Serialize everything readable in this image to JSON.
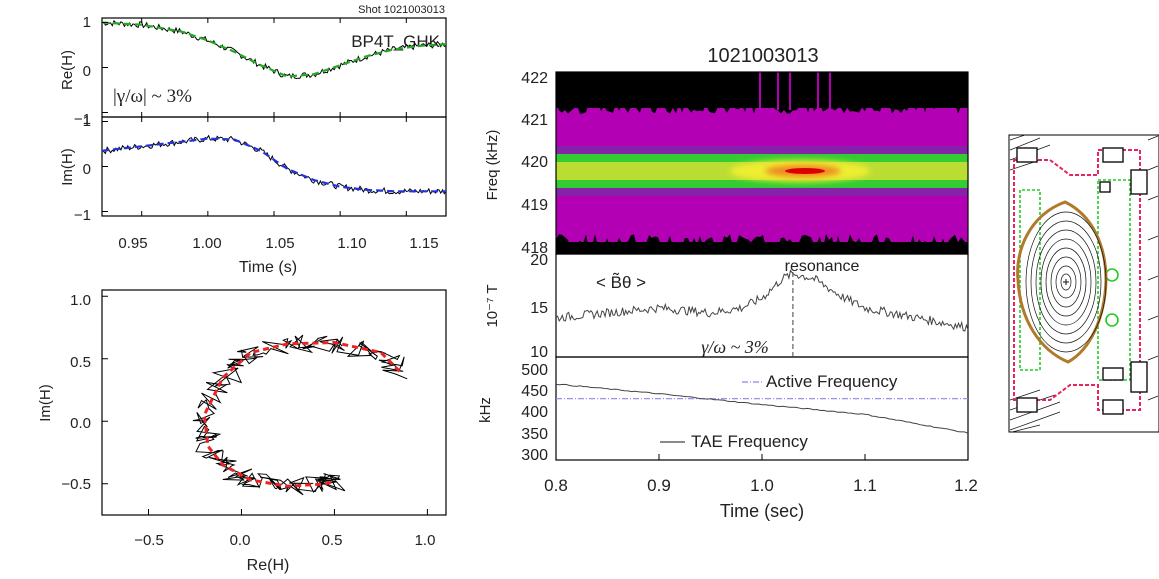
{
  "colors": {
    "fit_re": "#22aa22",
    "fit_im": "#2233dd",
    "fit_nyquist": "#ee2222",
    "data": "#000000",
    "active_line": "#8888ee",
    "spec_bg": "#000000",
    "spec_magenta": "#b400b4",
    "spec_green": "#33cc33",
    "spec_yellow": "#eeee33",
    "spec_core": "#dd0000",
    "vessel_red": "#e8245a",
    "vessel_green": "#22cc22",
    "vessel_brown": "#b07a2a"
  },
  "left_panel": {
    "shot_label": "Shot 1021003013",
    "probe_label": "BP4T_GHK",
    "growth_label": "|γ/ω| ~ 3%",
    "re_ylabel": "Re(H)",
    "im_ylabel": "Im(H)",
    "time_xlabel": "Time (s)",
    "re_yticks": [
      "1",
      "0",
      "−1"
    ],
    "im_yticks": [
      "1",
      "0",
      "−1"
    ],
    "time_xticks": [
      "0.95",
      "1.00",
      "1.05",
      "1.10",
      "1.15"
    ],
    "nyq_xlabel": "Re(H)",
    "nyq_ylabel": "Im(H)",
    "nyq_xticks": [
      "−0.5",
      "0.0",
      "0.5",
      "1.0"
    ],
    "nyq_yticks": [
      "1.0",
      "0.5",
      "0.0",
      "−0.5"
    ]
  },
  "middle_panel": {
    "title": "1021003013",
    "spec_ylabel": "Freq (kHz)",
    "spec_yticks": [
      "422",
      "421",
      "420",
      "419",
      "418"
    ],
    "b_ylabel": "10⁻⁷ T",
    "b_yticks": [
      "20",
      "15",
      "10"
    ],
    "b_legend": "< B̃θ >",
    "resonance_label": "resonance",
    "growth_label": "γ/ω ~ 3%",
    "f_ylabel": "kHz",
    "f_yticks": [
      "500",
      "450",
      "400",
      "350",
      "300"
    ],
    "active_label": "Active Frequency",
    "tae_label": "TAE Frequency",
    "xticks": [
      "0.8",
      "0.9",
      "1.0",
      "1.1",
      "1.2"
    ],
    "xlabel": "Time (sec)"
  },
  "chart_data": [
    {
      "type": "line",
      "ylabel": "Re(H)",
      "xlim": [
        0.92,
        1.18
      ],
      "ylim": [
        -1.1,
        1.1
      ],
      "series": [
        {
          "x": [
            0.92,
            0.95,
            0.98,
            1.0,
            1.02,
            1.04,
            1.06,
            1.08,
            1.1,
            1.12,
            1.14,
            1.16,
            1.18
          ],
          "values": [
            1.0,
            0.95,
            0.8,
            0.6,
            0.35,
            0.05,
            -0.2,
            -0.15,
            0.05,
            0.25,
            0.4,
            0.48,
            0.52
          ]
        }
      ]
    },
    {
      "type": "line",
      "xlabel": "Time (s)",
      "ylabel": "Im(H)",
      "xlim": [
        0.92,
        1.18
      ],
      "ylim": [
        -1.1,
        1.1
      ],
      "series": [
        {
          "x": [
            0.92,
            0.95,
            0.98,
            1.0,
            1.02,
            1.04,
            1.06,
            1.08,
            1.1,
            1.12,
            1.14,
            1.16,
            1.18
          ],
          "values": [
            0.35,
            0.45,
            0.55,
            0.62,
            0.6,
            0.35,
            -0.05,
            -0.3,
            -0.45,
            -0.52,
            -0.55,
            -0.55,
            -0.55
          ]
        }
      ]
    },
    {
      "type": "scatter",
      "xlabel": "Re(H)",
      "ylabel": "Im(H)",
      "xlim": [
        -0.75,
        1.1
      ],
      "ylim": [
        -0.75,
        1.05
      ],
      "series": [
        {
          "x": [
            0.85,
            0.75,
            0.5,
            0.25,
            0.05,
            -0.1,
            -0.2,
            -0.18,
            -0.1,
            0.05,
            0.25,
            0.45,
            0.5
          ],
          "values": [
            0.4,
            0.55,
            0.63,
            0.62,
            0.55,
            0.35,
            0.05,
            -0.2,
            -0.35,
            -0.47,
            -0.52,
            -0.5,
            -0.48
          ]
        }
      ]
    },
    {
      "type": "heatmap",
      "title": "1021003013",
      "ylabel": "Freq (kHz)",
      "xlim": [
        0.8,
        1.2
      ],
      "ylim": [
        418,
        422
      ],
      "peak": {
        "x": 1.03,
        "y": 419.7
      }
    },
    {
      "type": "line",
      "ylabel": "10⁻⁷ T",
      "xlim": [
        0.8,
        1.2
      ],
      "ylim": [
        9.5,
        20
      ],
      "annotations": [
        "resonance",
        "γ/ω ~ 3%"
      ],
      "resonance_x": 1.03,
      "series": [
        {
          "x": [
            0.8,
            0.85,
            0.9,
            0.95,
            0.98,
            1.0,
            1.02,
            1.03,
            1.05,
            1.08,
            1.1,
            1.15,
            1.2
          ],
          "values": [
            13.5,
            14.0,
            14.5,
            14.0,
            14.5,
            15.5,
            17.5,
            18.0,
            17.5,
            15.5,
            14.5,
            13.5,
            12.5
          ]
        }
      ]
    },
    {
      "type": "line",
      "xlabel": "Time (sec)",
      "ylabel": "kHz",
      "xlim": [
        0.8,
        1.2
      ],
      "ylim": [
        295,
        505
      ],
      "series": [
        {
          "name": "Active Frequency",
          "x": [
            0.8,
            1.2
          ],
          "values": [
            420,
            420
          ]
        },
        {
          "name": "TAE Frequency",
          "x": [
            0.8,
            0.9,
            1.0,
            1.1,
            1.2
          ],
          "values": [
            450,
            430,
            408,
            388,
            350
          ]
        }
      ]
    }
  ]
}
